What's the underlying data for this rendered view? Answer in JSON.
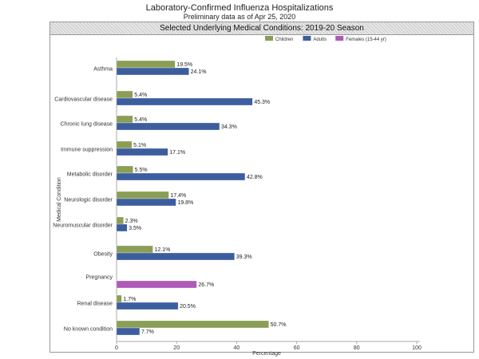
{
  "title": "Laboratory-Confirmed Influenza Hospitalizations",
  "subtitle": "Preliminary data as of Apr 25, 2020",
  "chart_data": {
    "type": "bar",
    "orientation": "horizontal",
    "title": "Selected Underlying Medical Conditions: 2019-20 Season",
    "xlabel": "Percentage",
    "ylabel": "Medical Condition",
    "xlim": [
      0,
      100
    ],
    "xticks": [
      "0",
      "20",
      "40",
      "60",
      "80",
      "100"
    ],
    "legend_position": "top-right",
    "categories": [
      "Asthma",
      "Cardiovascular disease",
      "Chronic lung disease",
      "Immune suppression",
      "Metabolic disorder",
      "Neurologic disorder",
      "Neuromuscular disorder",
      "Obesity",
      "Pregnancy",
      "Renal disease",
      "No known condition"
    ],
    "series": [
      {
        "name": "Children",
        "color": "#8a9e55",
        "values": [
          19.5,
          5.4,
          5.4,
          5.1,
          5.5,
          17.4,
          2.3,
          12.1,
          null,
          1.7,
          50.7
        ]
      },
      {
        "name": "Adults",
        "color": "#3d5e9e",
        "values": [
          24.1,
          45.3,
          34.3,
          17.1,
          42.8,
          19.8,
          3.5,
          39.3,
          null,
          20.5,
          7.7
        ]
      },
      {
        "name": "Females (15-44 yr)",
        "color": "#b05ab8",
        "values": [
          null,
          null,
          null,
          null,
          null,
          null,
          null,
          null,
          26.7,
          null,
          null
        ]
      }
    ]
  }
}
